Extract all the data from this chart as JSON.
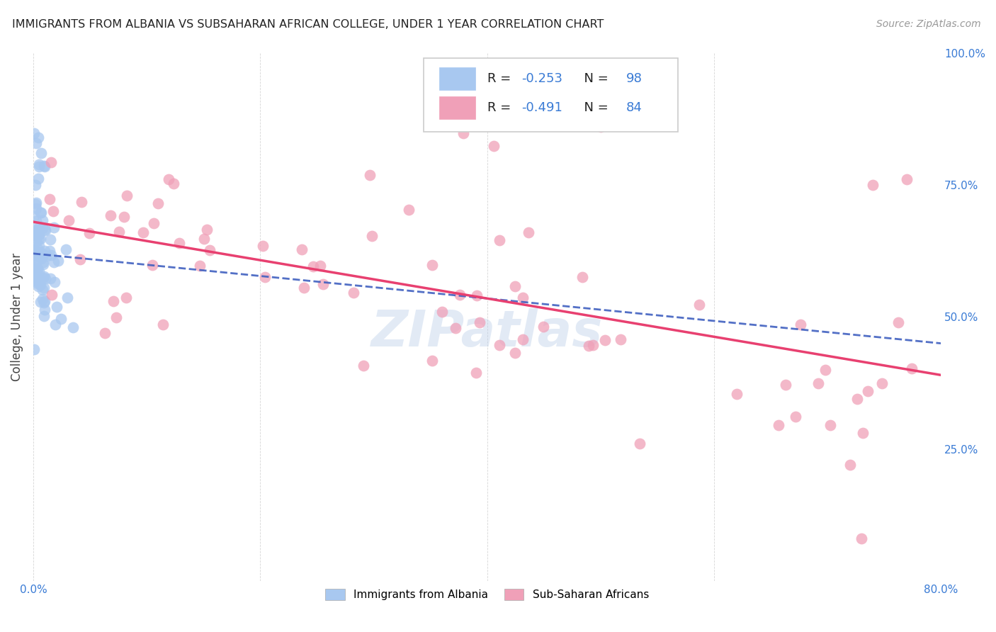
{
  "title": "IMMIGRANTS FROM ALBANIA VS SUBSAHARAN AFRICAN COLLEGE, UNDER 1 YEAR CORRELATION CHART",
  "source": "Source: ZipAtlas.com",
  "ylabel": "College, Under 1 year",
  "xlim": [
    0.0,
    0.8
  ],
  "ylim": [
    0.0,
    1.0
  ],
  "xtick_labels": [
    "0.0%",
    "",
    "",
    "",
    "80.0%"
  ],
  "xtick_values": [
    0.0,
    0.2,
    0.4,
    0.6,
    0.8
  ],
  "ytick_labels": [
    "25.0%",
    "50.0%",
    "75.0%",
    "100.0%"
  ],
  "ytick_values": [
    0.25,
    0.5,
    0.75,
    1.0
  ],
  "albania_R": -0.253,
  "albania_N": 98,
  "subsaharan_R": -0.491,
  "subsaharan_N": 84,
  "albania_color": "#a8c8f0",
  "subsaharan_color": "#f0a0b8",
  "albania_line_color": "#4060c0",
  "subsaharan_line_color": "#e84070",
  "watermark": "ZIPatlas",
  "albania_line_x0": 0.0,
  "albania_line_x1": 0.8,
  "albania_line_y0": 0.62,
  "albania_line_y1": 0.45,
  "subsaharan_line_x0": 0.0,
  "subsaharan_line_x1": 0.8,
  "subsaharan_line_y0": 0.68,
  "subsaharan_line_y1": 0.39
}
